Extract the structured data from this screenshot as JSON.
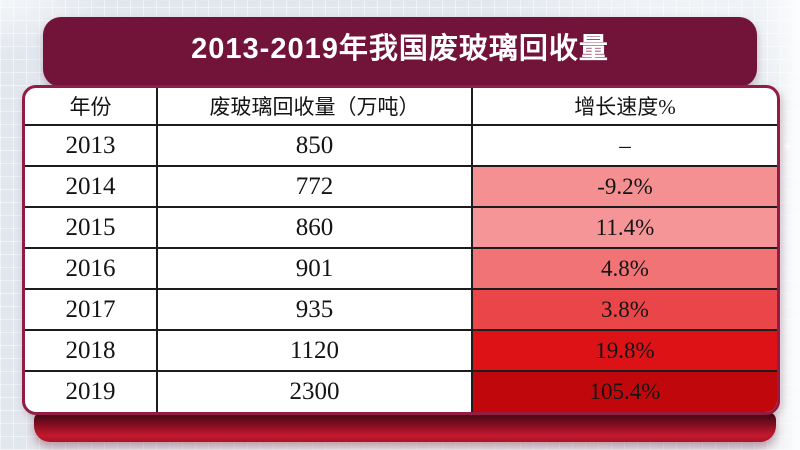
{
  "title": "2013-2019年我国废玻璃回收量",
  "table": {
    "columns": [
      "年份",
      "废玻璃回收量（万吨）",
      "增长速度%"
    ],
    "rows": [
      {
        "year": "2013",
        "volume": "850",
        "growth": "–",
        "growth_bg": "#FFFFFF"
      },
      {
        "year": "2014",
        "volume": "772",
        "growth": "-9.2%",
        "growth_bg": "#F59092"
      },
      {
        "year": "2015",
        "volume": "860",
        "growth": "11.4%",
        "growth_bg": "#F69598"
      },
      {
        "year": "2016",
        "volume": "901",
        "growth": "4.8%",
        "growth_bg": "#F17376"
      },
      {
        "year": "2017",
        "volume": "935",
        "growth": "3.8%",
        "growth_bg": "#EA4649"
      },
      {
        "year": "2018",
        "volume": "1120",
        "growth": "19.8%",
        "growth_bg": "#DD1216"
      },
      {
        "year": "2019",
        "volume": "2300",
        "growth": "105.4%",
        "growth_bg": "#C0080C"
      }
    ]
  },
  "chart_data": {
    "type": "table",
    "title": "2013-2019年我国废玻璃回收量",
    "columns": [
      "年份",
      "废玻璃回收量（万吨）",
      "增长速度%"
    ],
    "years": [
      2013,
      2014,
      2015,
      2016,
      2017,
      2018,
      2019
    ],
    "recycling_volume_wan_tons": [
      850,
      772,
      860,
      901,
      935,
      1120,
      2300
    ],
    "growth_rate_percent": [
      null,
      -9.2,
      11.4,
      4.8,
      3.8,
      19.8,
      105.4
    ],
    "notes": "growth cell background deepens from salmon pink to dark red as growth rises"
  },
  "colors": {
    "banner": "#72133A",
    "card_border": "#931C44",
    "footer_gradient_top": "#2E040A",
    "footer_gradient_bottom": "#C2182F",
    "background": "#E2E7EE",
    "grid_line": "#1C1C1C",
    "growth_scale": [
      "#FFFFFF",
      "#F59092",
      "#F69598",
      "#F17376",
      "#EA4649",
      "#DD1216",
      "#C0080C"
    ]
  },
  "icons": {
    "sparkle": "+"
  }
}
